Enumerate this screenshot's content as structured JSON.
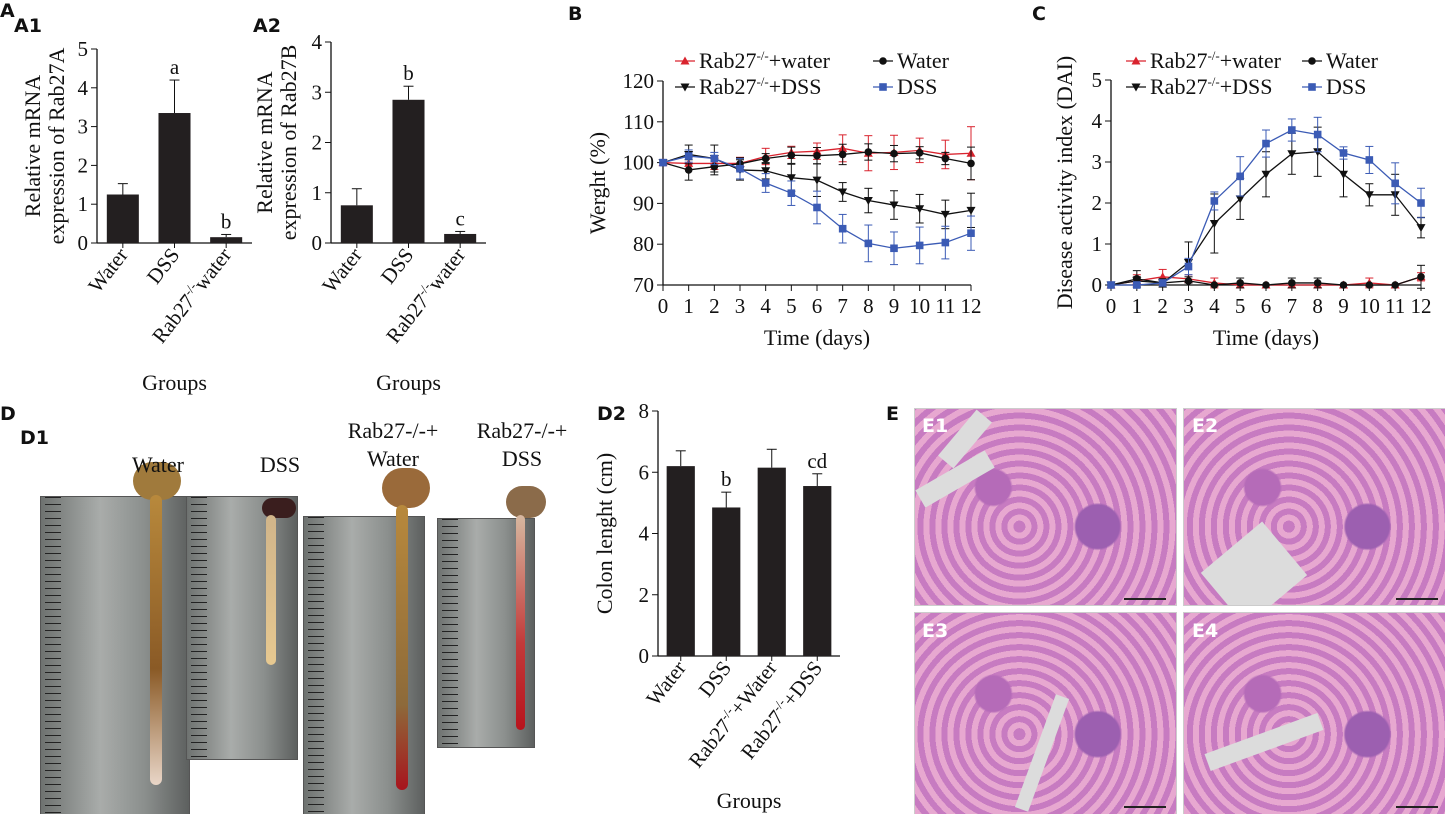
{
  "panel_labels": {
    "A": "A",
    "A1": "A1",
    "A2": "A2",
    "B": "B",
    "C": "C",
    "D": "D",
    "D1": "D1",
    "D2": "D2",
    "E": "E",
    "E1": "E1",
    "E2": "E2",
    "E3": "E3",
    "E4": "E4"
  },
  "photo_labels": {
    "water": "Water",
    "dss": "DSS",
    "rab_water_1": "Rab27-/-+",
    "rab_water_2": "Water",
    "rab_dss_1": "Rab27-/-+",
    "rab_dss_2": "DSS"
  },
  "colors": {
    "red": "#d9232e",
    "black": "#111111",
    "blue": "#3b5bb5",
    "bar": "#231f20"
  },
  "chart_data": [
    {
      "id": "A1",
      "type": "bar",
      "ylabel": "Relative mRNA expression of Rab27A",
      "xlabel": "Groups",
      "ylim": [
        0,
        5
      ],
      "yticks": [
        0,
        1,
        2,
        3,
        4,
        5
      ],
      "categories": [
        "Water",
        "DSS",
        "Rab27-/-water"
      ],
      "values": [
        1.25,
        3.35,
        0.15
      ],
      "errors": [
        0.28,
        0.85,
        0.07
      ],
      "annotations": [
        "",
        "a",
        "b"
      ]
    },
    {
      "id": "A2",
      "type": "bar",
      "ylabel": "Relative mRNA expression of Rab27B",
      "xlabel": "Groups",
      "ylim": [
        0,
        4
      ],
      "yticks": [
        0,
        1,
        2,
        3,
        4
      ],
      "categories": [
        "Water",
        "DSS",
        "Rab27-/-water"
      ],
      "values": [
        0.75,
        2.85,
        0.18
      ],
      "errors": [
        0.33,
        0.27,
        0.05
      ],
      "annotations": [
        "",
        "b",
        "c"
      ]
    },
    {
      "id": "B",
      "type": "line",
      "ylabel": "Werght (%)",
      "xlabel": "Time (days)",
      "ylim": [
        70,
        120
      ],
      "yticks": [
        70,
        80,
        90,
        100,
        110,
        120
      ],
      "x": [
        0,
        1,
        2,
        3,
        4,
        5,
        6,
        7,
        8,
        9,
        10,
        11,
        12
      ],
      "series": [
        {
          "name": "Rab27-/-+water",
          "color": "#d9232e",
          "marker": "triangle-up",
          "values": [
            100,
            99.8,
            99.8,
            99.8,
            101.5,
            102.5,
            102.8,
            103.5,
            102.3,
            102.5,
            103,
            102,
            102.3
          ],
          "errors": [
            0,
            1.5,
            1.5,
            1.5,
            2,
            1.5,
            2,
            3.3,
            4.3,
            4.2,
            3,
            3.5,
            6.5
          ]
        },
        {
          "name": "Water",
          "color": "#111111",
          "marker": "circle",
          "values": [
            100,
            98.2,
            99,
            99.7,
            101,
            101.8,
            101.7,
            102,
            102.6,
            102.2,
            102.4,
            101,
            99.8
          ],
          "errors": [
            0,
            2.5,
            2,
            1.5,
            1.2,
            2,
            2,
            2.5,
            2,
            2,
            1.5,
            1.5,
            4
          ]
        },
        {
          "name": "Rab27-/-+DSS",
          "color": "#111111",
          "marker": "triangle-down",
          "values": [
            100,
            102,
            101,
            98.2,
            98,
            96.3,
            95.7,
            92.8,
            90.7,
            89.6,
            88.7,
            87.3,
            88.3
          ],
          "errors": [
            0,
            2.3,
            3.3,
            2.5,
            2,
            3.3,
            4,
            2.3,
            3,
            3.5,
            3.5,
            3.5,
            4.2
          ]
        },
        {
          "name": "DSS",
          "color": "#3b5bb5",
          "marker": "square",
          "values": [
            100,
            101.6,
            101,
            98.5,
            95,
            92.5,
            89,
            83.8,
            80.2,
            79,
            79.7,
            80.4,
            82.7
          ],
          "errors": [
            0,
            1.5,
            1.5,
            2.5,
            2.3,
            3,
            4,
            3.5,
            4.5,
            4,
            4.5,
            4,
            4.2
          ]
        }
      ],
      "legend": "top"
    },
    {
      "id": "C",
      "type": "line",
      "ylabel": "Disease activity index (DAI)",
      "xlabel": "Time (days)",
      "ylim": [
        0,
        5
      ],
      "yticks": [
        0,
        1,
        2,
        3,
        4,
        5
      ],
      "x": [
        0,
        1,
        2,
        3,
        4,
        5,
        6,
        7,
        8,
        9,
        10,
        11,
        12
      ],
      "series": [
        {
          "name": "Rab27-/-+water",
          "color": "#d9232e",
          "marker": "triangle-up",
          "values": [
            0,
            0.1,
            0.2,
            0.15,
            0.05,
            0,
            0,
            0,
            0,
            0,
            0.05,
            0,
            0.2
          ],
          "errors": [
            0,
            0.15,
            0.18,
            0.1,
            0.12,
            0,
            0,
            0,
            0,
            0,
            0.12,
            0,
            0.1
          ]
        },
        {
          "name": "Water",
          "color": "#111111",
          "marker": "circle",
          "values": [
            0,
            0.15,
            0.05,
            0.1,
            0,
            0.05,
            0,
            0.05,
            0.05,
            0,
            0,
            0,
            0.2
          ],
          "errors": [
            0,
            0.2,
            0.1,
            0.1,
            0,
            0.12,
            0,
            0.12,
            0.12,
            0,
            0,
            0,
            0.28
          ]
        },
        {
          "name": "Rab27-/-+DSS",
          "color": "#111111",
          "marker": "triangle-down",
          "values": [
            0,
            0.1,
            0.05,
            0.55,
            1.5,
            2.1,
            2.7,
            3.2,
            3.25,
            2.7,
            2.2,
            2.2,
            1.4
          ],
          "errors": [
            0,
            0.1,
            0.1,
            0.5,
            0.72,
            0.5,
            0.55,
            0.5,
            0.6,
            0.55,
            0.27,
            0.5,
            0.25
          ]
        },
        {
          "name": "DSS",
          "color": "#3b5bb5",
          "marker": "square",
          "values": [
            0,
            0,
            0.05,
            0.45,
            2.05,
            2.65,
            3.45,
            3.78,
            3.67,
            3.22,
            3.05,
            2.48,
            2.0
          ],
          "errors": [
            0,
            0,
            0,
            0.2,
            0.22,
            0.48,
            0.33,
            0.27,
            0.42,
            0.15,
            0.33,
            0.5,
            0.36
          ]
        }
      ],
      "legend": "top"
    },
    {
      "id": "D2",
      "type": "bar",
      "ylabel": "Colon lenght (cm)",
      "xlabel": "Groups",
      "ylim": [
        0,
        8
      ],
      "yticks": [
        0,
        2,
        4,
        6,
        8
      ],
      "categories": [
        "Water",
        "DSS",
        "Rab27-/-+Water",
        "Rab27-/-+DSS"
      ],
      "values": [
        6.2,
        4.85,
        6.15,
        5.55
      ],
      "errors": [
        0.5,
        0.5,
        0.6,
        0.4
      ],
      "annotations": [
        "",
        "b",
        "",
        "cd"
      ]
    }
  ]
}
